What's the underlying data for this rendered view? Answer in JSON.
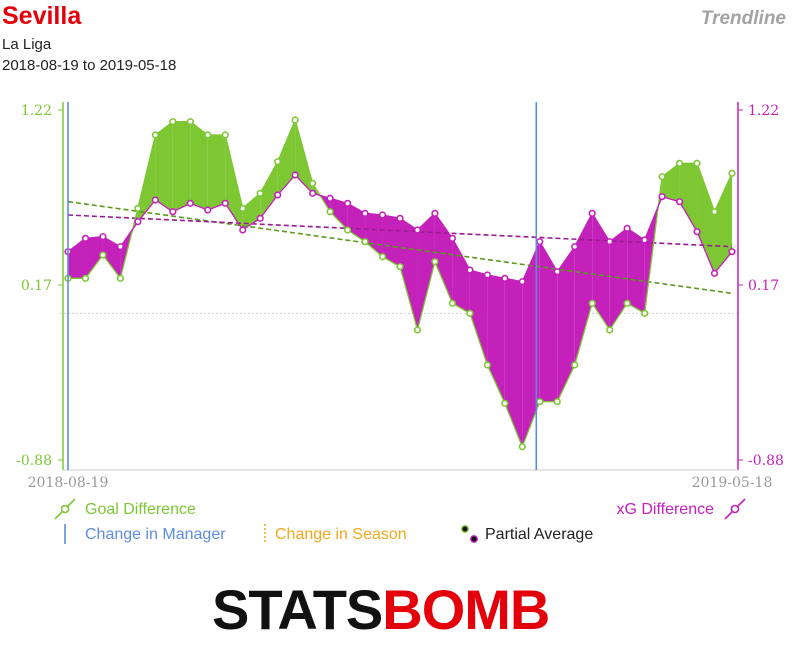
{
  "header": {
    "team": "Sevilla",
    "league": "La Liga",
    "date_range": "2018-08-19 to 2019-05-18",
    "mode": "Trendline"
  },
  "legend": {
    "goal_difference": "Goal Difference",
    "xg_difference": "xG Difference",
    "change_manager": "Change in Manager",
    "change_season": "Change in Season",
    "partial_average": "Partial Average"
  },
  "logo": {
    "part1": "STATS",
    "part2": "BOMB"
  },
  "colors": {
    "goal": "#7dc733",
    "xg": "#c321ba",
    "manager": "#5d8ddd",
    "season": "#f0a81d",
    "title": "#e3000b",
    "axis_text": "#999999"
  },
  "chart_data": {
    "type": "area",
    "x_start_label": "2018-08-19",
    "x_end_label": "2019-05-18",
    "left_axis": {
      "ticks": [
        "1.22",
        "0.17",
        "-0.88"
      ],
      "values": [
        1.22,
        0.17,
        -0.88
      ],
      "ylim": [
        -0.88,
        1.22
      ]
    },
    "right_axis": {
      "ticks": [
        "1.22",
        "0.17",
        "-0.88"
      ],
      "values": [
        1.22,
        0.17,
        -0.88
      ],
      "ylim": [
        -0.88,
        1.22
      ]
    },
    "reference_line": 0.0,
    "manager_changes_index": [
      0,
      26.8
    ],
    "series": [
      {
        "name": "Goal Difference",
        "values": [
          0.21,
          0.21,
          0.35,
          0.21,
          0.63,
          1.07,
          1.15,
          1.15,
          1.07,
          1.07,
          0.63,
          0.72,
          0.91,
          1.16,
          0.78,
          0.61,
          0.5,
          0.43,
          0.34,
          0.28,
          -0.1,
          0.31,
          0.06,
          0.0,
          -0.31,
          -0.54,
          -0.8,
          -0.53,
          -0.53,
          -0.31,
          0.06,
          -0.1,
          0.06,
          0.0,
          0.82,
          0.9,
          0.9,
          0.61,
          0.84
        ]
      },
      {
        "name": "xG Difference",
        "values": [
          0.37,
          0.45,
          0.46,
          0.4,
          0.55,
          0.68,
          0.61,
          0.66,
          0.62,
          0.66,
          0.5,
          0.57,
          0.71,
          0.83,
          0.72,
          0.69,
          0.66,
          0.6,
          0.59,
          0.57,
          0.5,
          0.6,
          0.45,
          0.26,
          0.23,
          0.21,
          0.19,
          0.43,
          0.25,
          0.4,
          0.6,
          0.43,
          0.51,
          0.44,
          0.7,
          0.67,
          0.49,
          0.24,
          0.37
        ]
      }
    ],
    "trendlines": [
      {
        "name": "Goal Difference",
        "start": 0.67,
        "end": 0.12
      },
      {
        "name": "xG Difference",
        "start": 0.59,
        "end": 0.4
      }
    ]
  }
}
